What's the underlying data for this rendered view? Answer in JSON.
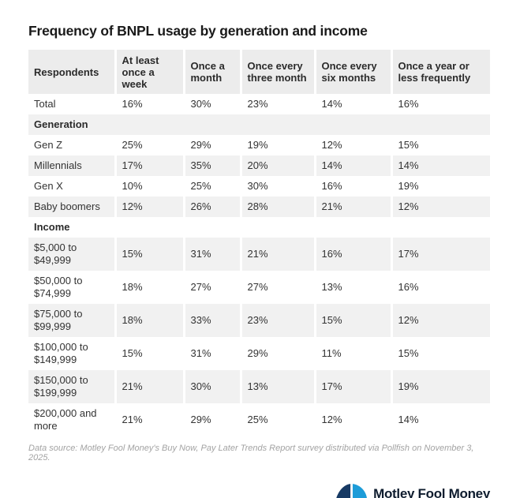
{
  "page": {
    "title": "Frequency of BNPL usage by generation and income",
    "footnote": "Data source: Motley Fool Money's Buy Now, Pay Later Trends Report survey distributed via Pollfish on November 3, 2025.",
    "branding": {
      "logo_text": "Motley Fool Money",
      "icon": "jester-hat-icon"
    }
  },
  "colors": {
    "header_bg": "#ececec",
    "stripe_bg": "#f1f1f1",
    "title_text": "#1a1a1a",
    "body_text": "#333333",
    "footnote_text": "#a3a3a3",
    "logo_navy": "#173a64",
    "logo_blue": "#1d9cd8",
    "logo_gold": "#f2a33c",
    "logo_text_color": "#0e1c2e"
  },
  "chart_data": {
    "type": "table",
    "title": "Frequency of BNPL usage by generation and income",
    "columns": [
      "Respondents",
      "At least once a week",
      "Once a month",
      "Once every three month",
      "Once every six months",
      "Once a year or less frequently"
    ],
    "rows": [
      {
        "type": "data",
        "label": "Total",
        "values": [
          "16%",
          "30%",
          "23%",
          "14%",
          "16%"
        ]
      },
      {
        "type": "section",
        "label": "Generation"
      },
      {
        "type": "data",
        "label": "Gen Z",
        "values": [
          "25%",
          "29%",
          "19%",
          "12%",
          "15%"
        ]
      },
      {
        "type": "data",
        "label": "Millennials",
        "values": [
          "17%",
          "35%",
          "20%",
          "14%",
          "14%"
        ]
      },
      {
        "type": "data",
        "label": "Gen X",
        "values": [
          "10%",
          "25%",
          "30%",
          "16%",
          "19%"
        ]
      },
      {
        "type": "data",
        "label": "Baby boomers",
        "values": [
          "12%",
          "26%",
          "28%",
          "21%",
          "12%"
        ]
      },
      {
        "type": "section",
        "label": "Income"
      },
      {
        "type": "data",
        "label": "$5,000 to $49,999",
        "values": [
          "15%",
          "31%",
          "21%",
          "16%",
          "17%"
        ]
      },
      {
        "type": "data",
        "label": "$50,000 to $74,999",
        "values": [
          "18%",
          "27%",
          "27%",
          "13%",
          "16%"
        ]
      },
      {
        "type": "data",
        "label": "$75,000 to $99,999",
        "values": [
          "18%",
          "33%",
          "23%",
          "15%",
          "12%"
        ]
      },
      {
        "type": "data",
        "label": "$100,000 to $149,999",
        "values": [
          "15%",
          "31%",
          "29%",
          "11%",
          "15%"
        ]
      },
      {
        "type": "data",
        "label": "$150,000 to $199,999",
        "values": [
          "21%",
          "30%",
          "13%",
          "17%",
          "19%"
        ]
      },
      {
        "type": "data",
        "label": "$200,000 and more",
        "values": [
          "21%",
          "29%",
          "25%",
          "12%",
          "14%"
        ]
      }
    ]
  }
}
